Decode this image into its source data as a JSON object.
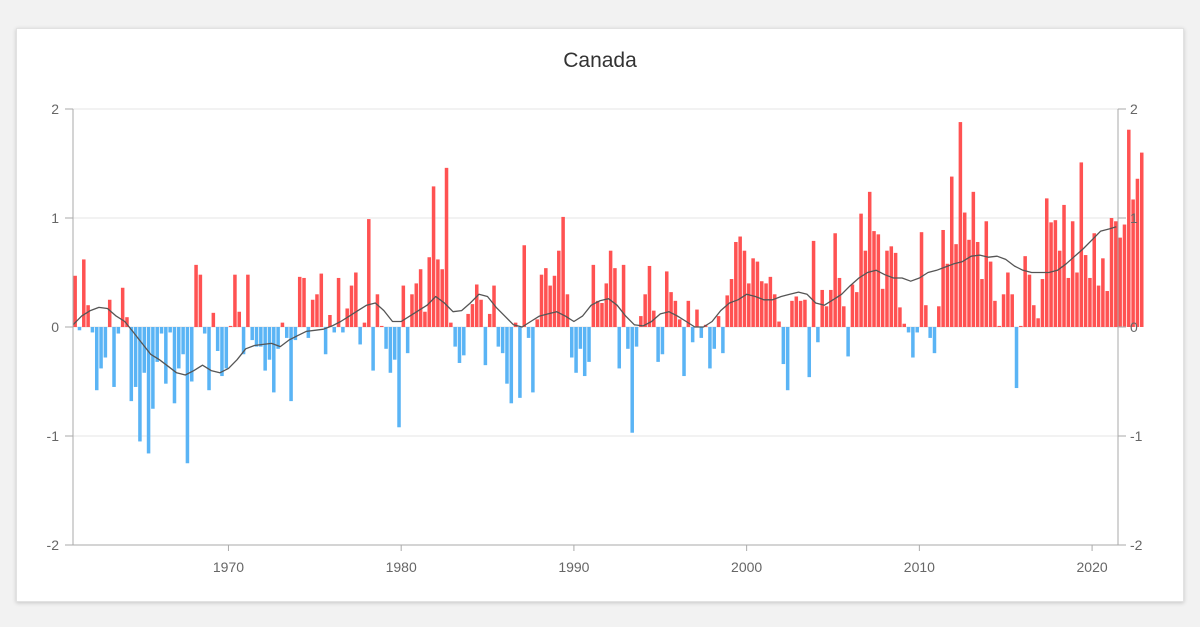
{
  "chart_data": {
    "type": "bar",
    "title": "Canada",
    "xlabel": "",
    "ylabel": "",
    "xlim": [
      1961,
      2021.5
    ],
    "ylim": [
      -2,
      2
    ],
    "yticks": [
      2,
      1,
      0,
      -1,
      -2
    ],
    "xticks": [
      1970,
      1980,
      1990,
      2000,
      2010,
      2020
    ],
    "grid": true,
    "legend": "none",
    "colors": {
      "positive": "#ff5252",
      "negative": "#5ab4f5",
      "trend": "#555555"
    },
    "x_start": 1961,
    "x_step": 0.25,
    "values": [
      0.47,
      -0.03,
      0.62,
      0.2,
      -0.05,
      -0.58,
      -0.38,
      -0.28,
      0.25,
      -0.55,
      -0.06,
      0.36,
      0.09,
      -0.68,
      -0.55,
      -1.05,
      -0.42,
      -1.16,
      -0.75,
      -0.32,
      -0.06,
      -0.52,
      -0.05,
      -0.7,
      -0.38,
      -0.25,
      -1.25,
      -0.5,
      0.57,
      0.48,
      -0.06,
      -0.58,
      0.13,
      -0.22,
      -0.45,
      -0.38,
      0.01,
      0.48,
      0.14,
      -0.25,
      0.48,
      -0.12,
      -0.18,
      -0.18,
      -0.4,
      -0.3,
      -0.6,
      -0.2,
      0.04,
      -0.1,
      -0.68,
      -0.12,
      0.46,
      0.45,
      -0.1,
      0.25,
      0.3,
      0.49,
      -0.25,
      0.11,
      -0.05,
      0.45,
      -0.05,
      0.17,
      0.38,
      0.5,
      -0.16,
      0.04,
      0.99,
      -0.4,
      0.3,
      0.01,
      -0.2,
      -0.42,
      -0.3,
      -0.92,
      0.38,
      -0.24,
      0.3,
      0.4,
      0.53,
      0.14,
      0.64,
      1.29,
      0.62,
      0.53,
      1.46,
      0.04,
      -0.18,
      -0.33,
      -0.26,
      0.12,
      0.21,
      0.39,
      0.25,
      -0.35,
      0.12,
      0.38,
      -0.18,
      -0.24,
      -0.52,
      -0.7,
      0.04,
      -0.65,
      0.75,
      -0.1,
      -0.6,
      0.07,
      0.48,
      0.54,
      0.38,
      0.47,
      0.7,
      1.01,
      0.3,
      -0.28,
      -0.42,
      -0.2,
      -0.45,
      -0.32,
      0.57,
      0.24,
      0.22,
      0.4,
      0.7,
      0.54,
      -0.38,
      0.57,
      -0.2,
      -0.97,
      -0.18,
      0.1,
      0.3,
      0.56,
      0.15,
      -0.32,
      -0.25,
      0.51,
      0.32,
      0.24,
      0.07,
      -0.45,
      0.24,
      -0.14,
      0.16,
      -0.1,
      0.02,
      -0.38,
      -0.2,
      0.1,
      -0.24,
      0.29,
      0.44,
      0.78,
      0.83,
      0.7,
      0.4,
      0.63,
      0.6,
      0.42,
      0.4,
      0.46,
      0.3,
      0.05,
      -0.34,
      -0.58,
      0.24,
      0.28,
      0.24,
      0.25,
      -0.46,
      0.79,
      -0.14,
      0.34,
      0.19,
      0.34,
      0.86,
      0.45,
      0.19,
      -0.27,
      0.39,
      0.32,
      1.04,
      0.7,
      1.24,
      0.88,
      0.85,
      0.35,
      0.7,
      0.74,
      0.68,
      0.18,
      0.03,
      -0.05,
      -0.28,
      -0.05,
      0.87,
      0.2,
      -0.1,
      -0.24,
      0.19,
      0.89,
      0.58,
      1.38,
      0.76,
      1.88,
      1.05,
      0.8,
      1.24,
      0.78,
      0.44,
      0.97,
      0.6,
      0.24,
      0.01,
      0.3,
      0.5,
      0.3,
      -0.56,
      0.01,
      0.65,
      0.48,
      0.2,
      0.08,
      0.44,
      1.18,
      0.96,
      0.98,
      0.7,
      1.12,
      0.45,
      0.97,
      0.5,
      1.51,
      0.66,
      0.45,
      0.86,
      0.38,
      0.63,
      0.33,
      1.0,
      0.97,
      0.82,
      0.94,
      1.81,
      1.17,
      1.36,
      1.6
    ],
    "trend": [
      [
        1961.0,
        0.02
      ],
      [
        1961.5,
        0.1
      ],
      [
        1962.0,
        0.15
      ],
      [
        1962.5,
        0.18
      ],
      [
        1963.0,
        0.17
      ],
      [
        1963.5,
        0.1
      ],
      [
        1964.0,
        0.05
      ],
      [
        1964.5,
        -0.05
      ],
      [
        1965.0,
        -0.15
      ],
      [
        1965.5,
        -0.25
      ],
      [
        1966.0,
        -0.3
      ],
      [
        1966.5,
        -0.36
      ],
      [
        1967.0,
        -0.42
      ],
      [
        1967.5,
        -0.44
      ],
      [
        1968.0,
        -0.4
      ],
      [
        1968.5,
        -0.35
      ],
      [
        1969.0,
        -0.4
      ],
      [
        1969.5,
        -0.42
      ],
      [
        1970.0,
        -0.38
      ],
      [
        1970.5,
        -0.3
      ],
      [
        1971.0,
        -0.2
      ],
      [
        1971.5,
        -0.17
      ],
      [
        1972.0,
        -0.16
      ],
      [
        1972.5,
        -0.15
      ],
      [
        1973.0,
        -0.18
      ],
      [
        1973.5,
        -0.12
      ],
      [
        1974.0,
        -0.08
      ],
      [
        1974.5,
        -0.04
      ],
      [
        1975.0,
        -0.03
      ],
      [
        1975.5,
        -0.02
      ],
      [
        1976.0,
        0.01
      ],
      [
        1976.5,
        0.05
      ],
      [
        1977.0,
        0.1
      ],
      [
        1977.5,
        0.15
      ],
      [
        1978.0,
        0.2
      ],
      [
        1978.5,
        0.22
      ],
      [
        1979.0,
        0.15
      ],
      [
        1979.5,
        0.05
      ],
      [
        1980.0,
        0.05
      ],
      [
        1980.5,
        0.1
      ],
      [
        1981.0,
        0.15
      ],
      [
        1981.5,
        0.2
      ],
      [
        1982.0,
        0.28
      ],
      [
        1982.5,
        0.22
      ],
      [
        1983.0,
        0.14
      ],
      [
        1983.5,
        0.15
      ],
      [
        1984.0,
        0.22
      ],
      [
        1984.5,
        0.3
      ],
      [
        1985.0,
        0.28
      ],
      [
        1985.5,
        0.18
      ],
      [
        1986.0,
        0.1
      ],
      [
        1986.5,
        0.02
      ],
      [
        1987.0,
        0.0
      ],
      [
        1987.5,
        0.05
      ],
      [
        1988.0,
        0.1
      ],
      [
        1988.5,
        0.12
      ],
      [
        1989.0,
        0.14
      ],
      [
        1989.5,
        0.1
      ],
      [
        1990.0,
        0.05
      ],
      [
        1990.5,
        0.1
      ],
      [
        1991.0,
        0.2
      ],
      [
        1991.5,
        0.24
      ],
      [
        1992.0,
        0.26
      ],
      [
        1992.5,
        0.2
      ],
      [
        1993.0,
        0.1
      ],
      [
        1993.5,
        0.02
      ],
      [
        1994.0,
        0.01
      ],
      [
        1994.5,
        0.05
      ],
      [
        1995.0,
        0.12
      ],
      [
        1995.5,
        0.14
      ],
      [
        1996.0,
        0.1
      ],
      [
        1996.5,
        0.05
      ],
      [
        1997.0,
        0.0
      ],
      [
        1997.5,
        0.0
      ],
      [
        1998.0,
        0.05
      ],
      [
        1998.5,
        0.15
      ],
      [
        1999.0,
        0.22
      ],
      [
        1999.5,
        0.25
      ],
      [
        2000.0,
        0.3
      ],
      [
        2000.5,
        0.28
      ],
      [
        2001.0,
        0.25
      ],
      [
        2001.5,
        0.25
      ],
      [
        2002.0,
        0.28
      ],
      [
        2002.5,
        0.3
      ],
      [
        2003.0,
        0.32
      ],
      [
        2003.5,
        0.3
      ],
      [
        2004.0,
        0.22
      ],
      [
        2004.5,
        0.2
      ],
      [
        2005.0,
        0.25
      ],
      [
        2005.5,
        0.3
      ],
      [
        2006.0,
        0.38
      ],
      [
        2006.5,
        0.45
      ],
      [
        2007.0,
        0.5
      ],
      [
        2007.5,
        0.52
      ],
      [
        2008.0,
        0.48
      ],
      [
        2008.5,
        0.45
      ],
      [
        2009.0,
        0.45
      ],
      [
        2009.5,
        0.42
      ],
      [
        2010.0,
        0.45
      ],
      [
        2010.5,
        0.5
      ],
      [
        2011.0,
        0.52
      ],
      [
        2011.5,
        0.55
      ],
      [
        2012.0,
        0.58
      ],
      [
        2012.5,
        0.6
      ],
      [
        2013.0,
        0.65
      ],
      [
        2013.5,
        0.66
      ],
      [
        2014.0,
        0.64
      ],
      [
        2014.5,
        0.65
      ],
      [
        2015.0,
        0.62
      ],
      [
        2015.5,
        0.56
      ],
      [
        2016.0,
        0.52
      ],
      [
        2016.5,
        0.5
      ],
      [
        2017.0,
        0.5
      ],
      [
        2017.5,
        0.5
      ],
      [
        2018.0,
        0.52
      ],
      [
        2018.5,
        0.58
      ],
      [
        2019.0,
        0.65
      ],
      [
        2019.5,
        0.72
      ],
      [
        2020.0,
        0.8
      ],
      [
        2020.5,
        0.88
      ],
      [
        2021.0,
        0.9
      ],
      [
        2021.4,
        0.92
      ]
    ]
  }
}
